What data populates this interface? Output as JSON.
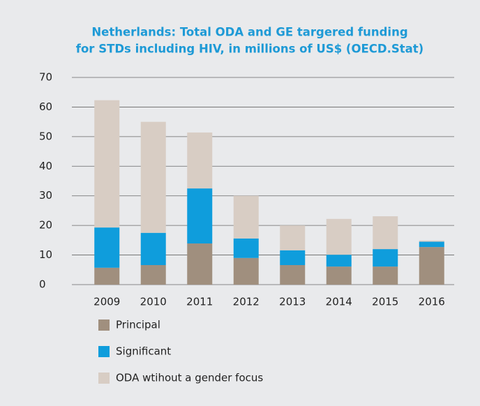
{
  "chart_data": {
    "type": "stacked_bar",
    "title": [
      "Netherlands: Total ODA and GE targered  funding",
      "for STDs including HIV, in millions of US$ (OECD.Stat)"
    ],
    "categories": [
      "2009",
      "2010",
      "2011",
      "2012",
      "2013",
      "2014",
      "2015",
      "2016"
    ],
    "series": [
      {
        "name": "Principal",
        "color": "#a08f7e",
        "values": [
          5.7,
          6.6,
          13.9,
          9,
          6.6,
          6.1,
          6.1,
          12.7
        ]
      },
      {
        "name": "Significant",
        "color": "#0f9ddc",
        "values": [
          13.6,
          10.9,
          18.6,
          6.6,
          5,
          4,
          5.9,
          1.8
        ]
      },
      {
        "name": "ODA wtihout a gender focus",
        "color": "#d8cdc4",
        "values": [
          43,
          37.5,
          18.9,
          14.4,
          8.4,
          12.1,
          11.1,
          0.4
        ]
      }
    ],
    "ylim": [
      0,
      70
    ],
    "yticks": [
      0,
      10,
      20,
      30,
      40,
      50,
      60,
      70
    ],
    "grid": true
  }
}
